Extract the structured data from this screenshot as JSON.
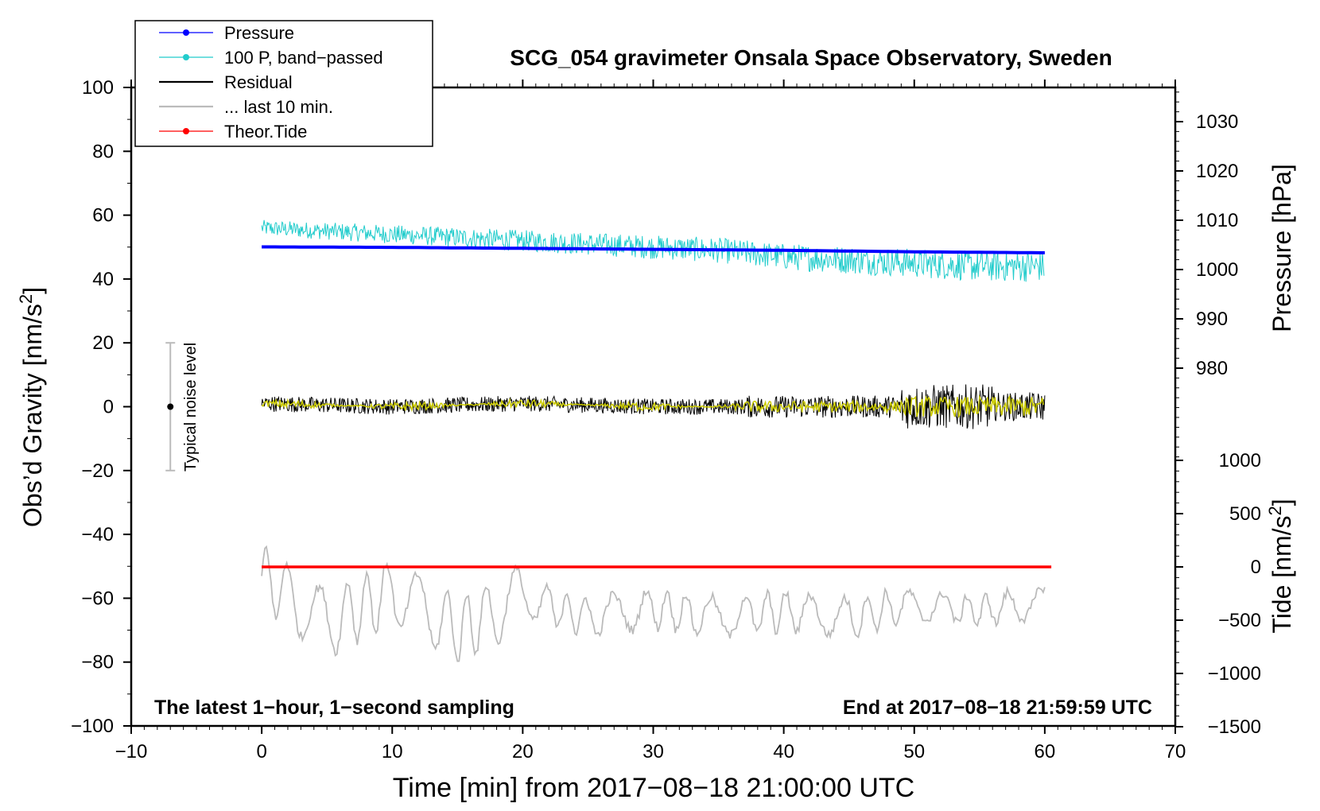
{
  "chart_data": {
    "type": "line",
    "title": "SCG_054 gravimeter Onsala Space Observatory, Sweden",
    "xlabel": "Time [min] from 2017−08−18 21:00:00 UTC",
    "xlim": [
      -10,
      70
    ],
    "xticks": [
      -10,
      0,
      10,
      20,
      30,
      40,
      50,
      60,
      70
    ],
    "xtick_labels": [
      "−10",
      "0",
      "10",
      "20",
      "30",
      "40",
      "50",
      "60",
      "70"
    ],
    "grid": false,
    "left_axis": {
      "label_main": "Obs’d Gravity [nm/s",
      "label_sup": "2",
      "label_end": "]",
      "ylim": [
        -100,
        100
      ],
      "ticks": [
        100,
        80,
        60,
        40,
        20,
        0,
        -20,
        -40,
        -60,
        -80,
        -100
      ],
      "tick_labels": [
        "100",
        "80",
        "60",
        "40",
        "20",
        "0",
        "−20",
        "−40",
        "−60",
        "−80",
        "−100"
      ]
    },
    "right_pressure_axis": {
      "label": "Pressure [hPa]",
      "ticks": [
        1030,
        1020,
        1010,
        1000,
        990,
        980
      ],
      "tick_labels": [
        "1030",
        "1020",
        "1010",
        "1000",
        "990",
        "980"
      ],
      "ylim_hPa": [
        960,
        1040
      ]
    },
    "right_tide_axis": {
      "label_main": "Tide [nm/s",
      "label_sup": "2",
      "label_end": "]",
      "ticks": [
        1000,
        500,
        0,
        -500,
        -1000,
        -1500
      ],
      "tick_labels": [
        "1000",
        "500",
        "0",
        "−500",
        "−1000",
        "−1500"
      ],
      "ylim_nms2": [
        -1500,
        1000
      ]
    },
    "legend": {
      "position": "top-left",
      "entries": [
        {
          "label": "Pressure",
          "color": "#0000ff",
          "marker": true
        },
        {
          "label": "100 P, band−passed",
          "color": "#22cccc",
          "marker": true
        },
        {
          "label": "Residual",
          "color": "#000000",
          "marker": false
        },
        {
          "label": "... last 10 min.",
          "color": "#bbbbbb",
          "marker": false
        },
        {
          "label": "Theor.Tide",
          "color": "#ff0000",
          "marker": true
        }
      ]
    },
    "noise_bar": {
      "label": "Typical noise level",
      "x": -7,
      "center": 0,
      "half_range": 20
    },
    "annotations": {
      "bottom_left": "The latest 1−hour, 1−second sampling",
      "bottom_right": "End at 2017−08−18 21:59:59 UTC"
    },
    "series": [
      {
        "name": "Pressure",
        "color": "#0000ff",
        "axis": "pressure_hPa",
        "x": [
          0,
          10,
          20,
          30,
          40,
          50,
          60
        ],
        "values": [
          1004.6,
          1004.5,
          1004.3,
          1004.1,
          1003.9,
          1003.6,
          1003.4
        ]
      },
      {
        "name": "100 P, band−passed",
        "color": "#22cccc",
        "axis": "gravity_nms2",
        "x": [
          0,
          5,
          10,
          15,
          20,
          25,
          30,
          35,
          40,
          45,
          50,
          55,
          60
        ],
        "values": [
          56,
          55,
          54,
          53,
          52,
          51,
          50,
          49,
          47,
          46,
          45,
          44,
          44
        ]
      },
      {
        "name": "Residual",
        "color": "#000000",
        "axis": "gravity_nms2",
        "x": [
          0,
          10,
          20,
          30,
          40,
          50,
          60
        ],
        "values": [
          1,
          0,
          1,
          0,
          0,
          0,
          0
        ]
      },
      {
        "name": "Residual (smoothed)",
        "color": "#cccc00",
        "axis": "gravity_nms2",
        "x": [
          0,
          10,
          20,
          30,
          40,
          50,
          60
        ],
        "values": [
          1,
          0,
          1,
          0,
          0,
          0,
          0
        ]
      },
      {
        "name": "... last 10 min.",
        "color": "#bbbbbb",
        "axis": "gravity_nms2",
        "x": [
          0,
          5,
          10,
          15,
          20,
          25,
          30,
          35,
          40,
          45,
          50,
          55,
          60
        ],
        "values": [
          -53,
          -68,
          -58,
          -70,
          -60,
          -66,
          -63,
          -66,
          -64,
          -66,
          -62,
          -64,
          -61
        ]
      },
      {
        "name": "Theor.Tide",
        "color": "#ff0000",
        "axis": "tide_nms2",
        "x": [
          0,
          10,
          20,
          30,
          40,
          50,
          60.5
        ],
        "values": [
          0,
          0,
          0,
          0,
          0,
          0,
          0
        ]
      }
    ]
  }
}
